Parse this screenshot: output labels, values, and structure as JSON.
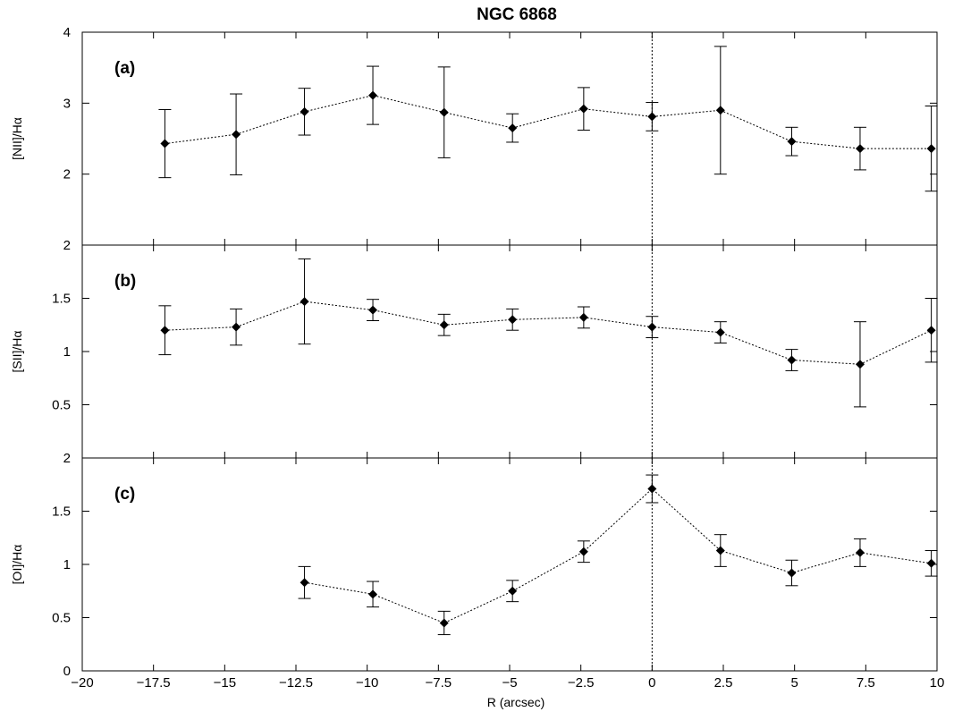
{
  "chart_data": {
    "type": "scatter",
    "title": "NGC 6868",
    "xlabel": "R (arcsec)",
    "xlim": [
      -20,
      10
    ],
    "x_ticks": [
      -20,
      -17.5,
      -15,
      -12.5,
      -10,
      -7.5,
      -5,
      -2.5,
      0,
      2.5,
      5,
      7.5,
      10
    ],
    "x_tick_labels": [
      "−20",
      "−17.5",
      "−15",
      "−12.5",
      "−10",
      "−7.5",
      "−5",
      "−2.5",
      "0",
      "2.5",
      "5",
      "7.5",
      "10"
    ],
    "vertical_line_x": 0,
    "grid": false,
    "panels": [
      {
        "label": "(a)",
        "ylabel": "[NII]/Hα",
        "ylim": [
          1,
          4
        ],
        "y_ticks": [
          2,
          3,
          4
        ],
        "y_tick_labels": [
          "2",
          "3",
          "4"
        ],
        "points": [
          {
            "x": -17.1,
            "y": 2.43,
            "err": 0.48
          },
          {
            "x": -14.6,
            "y": 2.56,
            "err": 0.57
          },
          {
            "x": -12.2,
            "y": 2.88,
            "err": 0.33
          },
          {
            "x": -9.8,
            "y": 3.11,
            "err": 0.41
          },
          {
            "x": -7.3,
            "y": 2.87,
            "err": 0.64
          },
          {
            "x": -4.9,
            "y": 2.65,
            "err": 0.2
          },
          {
            "x": -2.4,
            "y": 2.92,
            "err": 0.3
          },
          {
            "x": 0,
            "y": 2.81,
            "err": 0.2
          },
          {
            "x": 2.4,
            "y": 2.9,
            "err": 0.9
          },
          {
            "x": 4.9,
            "y": 2.46,
            "err": 0.2
          },
          {
            "x": 7.3,
            "y": 2.36,
            "err": 0.3
          },
          {
            "x": 9.8,
            "y": 2.36,
            "err": 0.6
          }
        ]
      },
      {
        "label": "(b)",
        "ylabel": "[SII]/Hα",
        "ylim": [
          0,
          2
        ],
        "y_ticks": [
          0.5,
          1,
          1.5,
          2
        ],
        "y_tick_labels": [
          "0.5",
          "1",
          "1.5",
          "2"
        ],
        "points": [
          {
            "x": -17.1,
            "y": 1.2,
            "err": 0.23
          },
          {
            "x": -14.6,
            "y": 1.23,
            "err": 0.17
          },
          {
            "x": -12.2,
            "y": 1.47,
            "err": 0.4
          },
          {
            "x": -9.8,
            "y": 1.39,
            "err": 0.1
          },
          {
            "x": -7.3,
            "y": 1.25,
            "err": 0.1
          },
          {
            "x": -4.9,
            "y": 1.3,
            "err": 0.1
          },
          {
            "x": -2.4,
            "y": 1.32,
            "err": 0.1
          },
          {
            "x": 0,
            "y": 1.23,
            "err": 0.1
          },
          {
            "x": 2.4,
            "y": 1.18,
            "err": 0.1
          },
          {
            "x": 4.9,
            "y": 0.92,
            "err": 0.1
          },
          {
            "x": 7.3,
            "y": 0.88,
            "err": 0.4
          },
          {
            "x": 9.8,
            "y": 1.2,
            "err": 0.3
          }
        ]
      },
      {
        "label": "(c)",
        "ylabel": "[OI]/Hα",
        "ylim": [
          0,
          2
        ],
        "y_ticks": [
          0,
          0.5,
          1,
          1.5,
          2
        ],
        "y_tick_labels": [
          "0",
          "0.5",
          "1",
          "1.5",
          "2"
        ],
        "points": [
          {
            "x": -12.2,
            "y": 0.83,
            "err": 0.15
          },
          {
            "x": -9.8,
            "y": 0.72,
            "err": 0.12
          },
          {
            "x": -7.3,
            "y": 0.45,
            "err": 0.11
          },
          {
            "x": -4.9,
            "y": 0.75,
            "err": 0.1
          },
          {
            "x": -2.4,
            "y": 1.12,
            "err": 0.1
          },
          {
            "x": 0,
            "y": 1.71,
            "err": 0.13
          },
          {
            "x": 2.4,
            "y": 1.13,
            "err": 0.15
          },
          {
            "x": 4.9,
            "y": 0.92,
            "err": 0.12
          },
          {
            "x": 7.3,
            "y": 1.11,
            "err": 0.13
          },
          {
            "x": 9.8,
            "y": 1.01,
            "err": 0.12
          }
        ]
      }
    ]
  }
}
